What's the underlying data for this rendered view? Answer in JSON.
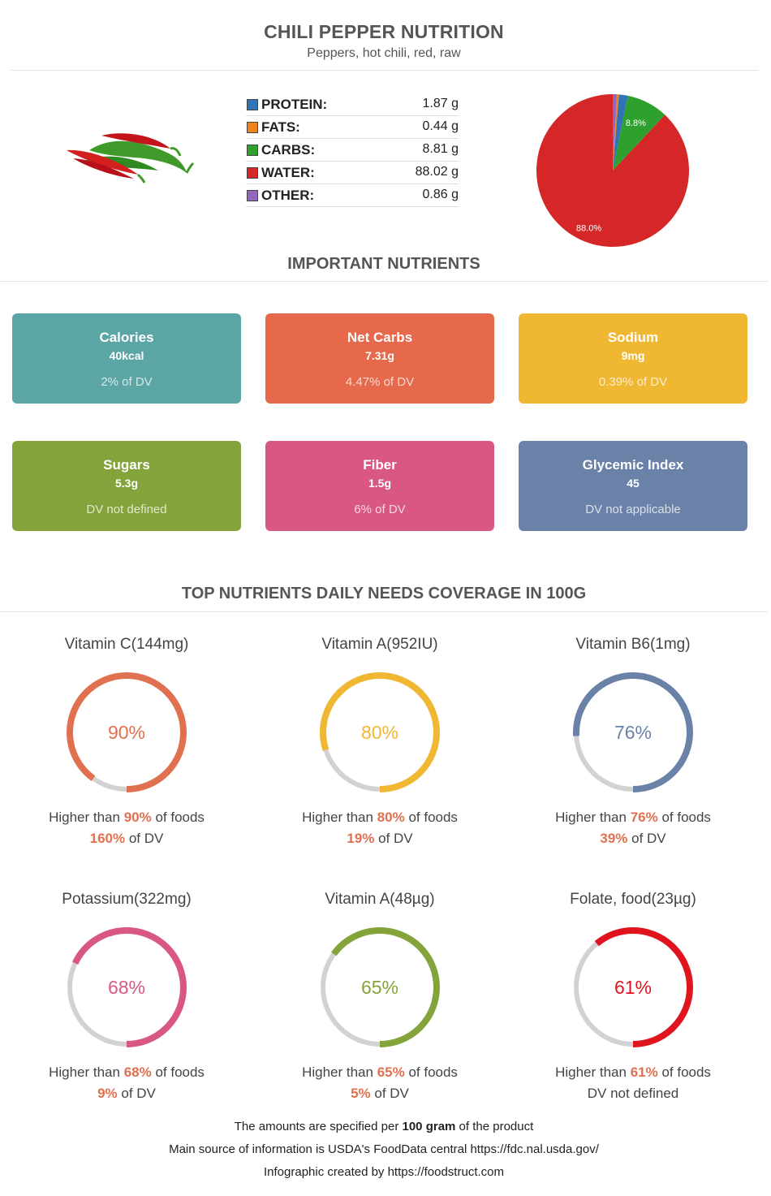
{
  "header": {
    "title": "CHILI PEPPER NUTRITION",
    "subtitle": "Peppers, hot chili, red, raw"
  },
  "macros": [
    {
      "label": "PROTEIN:",
      "value": "1.87 g",
      "color": "#2f74b5"
    },
    {
      "label": "FATS:",
      "value": "0.44 g",
      "color": "#f0821e"
    },
    {
      "label": "CARBS:",
      "value": "8.81 g",
      "color": "#2ea02e"
    },
    {
      "label": "WATER:",
      "value": "88.02 g",
      "color": "#d62728"
    },
    {
      "label": "OTHER:",
      "value": "0.86 g",
      "color": "#9467bd"
    }
  ],
  "chart_data": {
    "type": "pie",
    "slices": [
      {
        "name": "WATER",
        "value": 88.02,
        "color": "#d62728",
        "label": "88.0%"
      },
      {
        "name": "CARBS",
        "value": 8.81,
        "color": "#2ea02e",
        "label": "8.8%"
      },
      {
        "name": "PROTEIN",
        "value": 1.87,
        "color": "#2f74b5",
        "label": ""
      },
      {
        "name": "FATS",
        "value": 0.44,
        "color": "#f0821e",
        "label": ""
      },
      {
        "name": "OTHER",
        "value": 0.86,
        "color": "#9467bd",
        "label": ""
      }
    ]
  },
  "important": {
    "title": "IMPORTANT NUTRIENTS",
    "cards": [
      {
        "name": "Calories",
        "value": "40kcal",
        "dv": "2% of DV",
        "color": "#5ba5a4"
      },
      {
        "name": "Net Carbs",
        "value": "7.31g",
        "dv": "4.47% of DV",
        "color": "#e5694a"
      },
      {
        "name": "Sodium",
        "value": "9mg",
        "dv": "0.39% of DV",
        "color": "#f0b733"
      },
      {
        "name": "Sugars",
        "value": "5.3g",
        "dv": "DV not defined",
        "color": "#84a43b"
      },
      {
        "name": "Fiber",
        "value": "1.5g",
        "dv": "6% of DV",
        "color": "#d95784"
      },
      {
        "name": "Glycemic Index",
        "value": "45",
        "dv": "DV not applicable",
        "color": "#6a82a8"
      }
    ]
  },
  "coverage": {
    "title": "TOP NUTRIENTS DAILY NEEDS COVERAGE IN 100G",
    "higher_prefix": "Higher than ",
    "higher_suffix": " of foods",
    "dv_suffix": " of DV",
    "items": [
      {
        "name": "Vitamin C(144mg)",
        "pct": 90,
        "pct_label": "90%",
        "dv": "160%",
        "dv_text": "",
        "color": "#e07050"
      },
      {
        "name": "Vitamin A(952IU)",
        "pct": 80,
        "pct_label": "80%",
        "dv": "19%",
        "dv_text": "",
        "color": "#f0b733"
      },
      {
        "name": "Vitamin B6(1mg)",
        "pct": 76,
        "pct_label": "76%",
        "dv": "39%",
        "dv_text": "",
        "color": "#6a82a8"
      },
      {
        "name": "Potassium(322mg)",
        "pct": 68,
        "pct_label": "68%",
        "dv": "9%",
        "dv_text": "",
        "color": "#d95784"
      },
      {
        "name": "Vitamin A(48µg)",
        "pct": 65,
        "pct_label": "65%",
        "dv": "5%",
        "dv_text": "",
        "color": "#84a43b"
      },
      {
        "name": "Folate, food(23µg)",
        "pct": 61,
        "pct_label": "61%",
        "dv": "",
        "dv_text": "DV not defined",
        "color": "#e0141e"
      }
    ]
  },
  "footer": {
    "line1_pre": "The amounts are specified per ",
    "line1_bold": "100 gram",
    "line1_post": " of the product",
    "line2": "Main source of information is USDA's FoodData central https://fdc.nal.usda.gov/",
    "line3": "Infographic created by https://foodstruct.com"
  }
}
